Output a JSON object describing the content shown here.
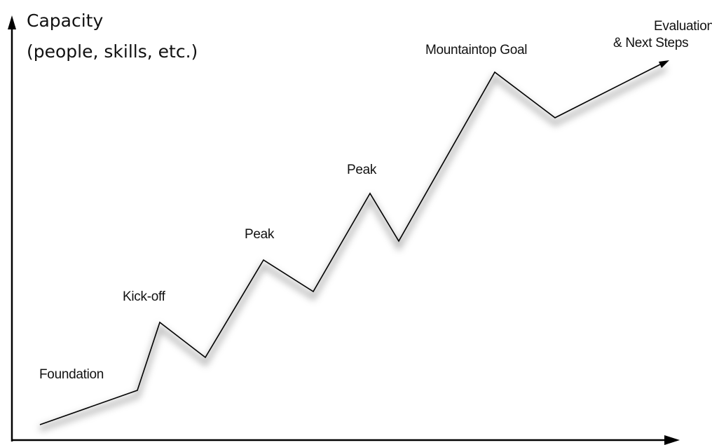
{
  "axis": {
    "y_label_line1": "Capacity",
    "y_label_line2": "(people, skills, etc.)"
  },
  "stages": [
    {
      "label": "Foundation"
    },
    {
      "label": "Kick-off"
    },
    {
      "label": "Peak"
    },
    {
      "label": "Peak"
    },
    {
      "label": "Mountaintop Goal"
    },
    {
      "label_line1": "Evaluation",
      "label_line2": "& Next Steps"
    }
  ]
}
